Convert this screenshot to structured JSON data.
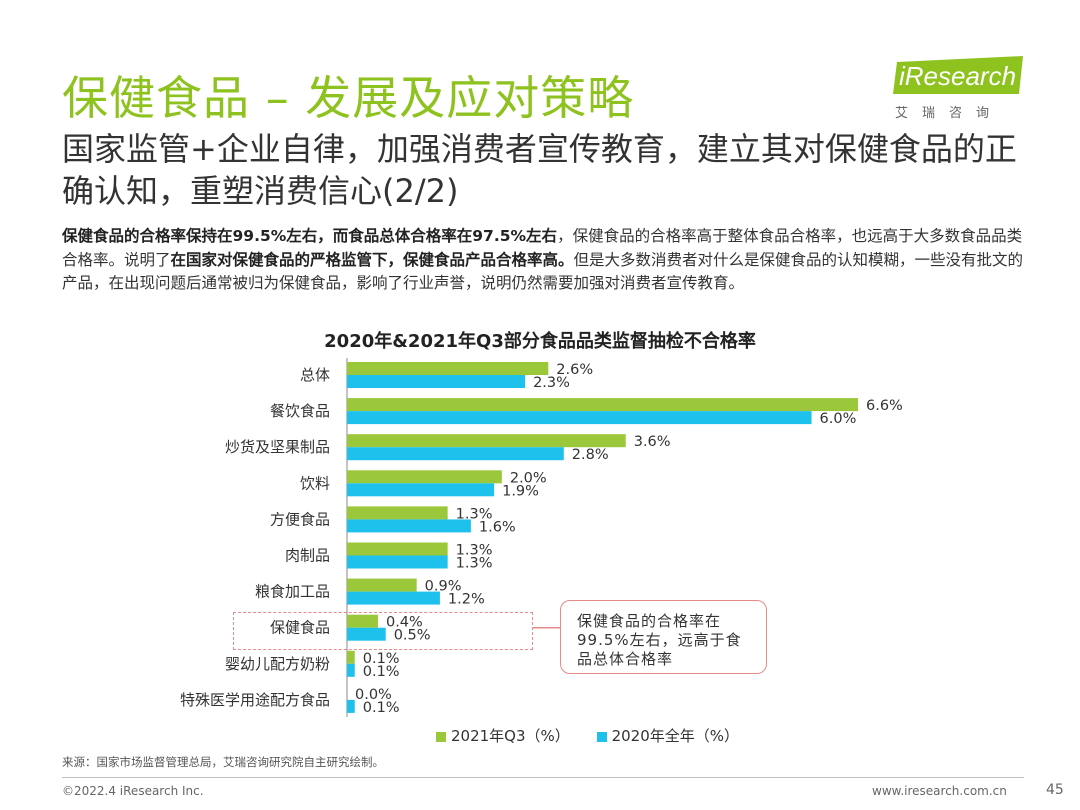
{
  "header": {
    "title": "保健食品 – 发展及应对策略",
    "subtitle": "国家监管+企业自律，加强消费者宣传教育，建立其对保健食品的正确认知，重塑消费信心(2/2)"
  },
  "logo": {
    "text": "iResearch",
    "sub": "艾瑞咨询",
    "color": "#8DC21F"
  },
  "description": {
    "part1_bold": "保健食品的合格率保持在99.5%左右，而食品总体合格率在97.5%左右",
    "part2": "，保健食品的合格率高于整体食品合格率，也远高于大多数食品品类合格率。说明了",
    "part3_bold": "在国家对保健食品的严格监管下，保健食品产品合格率高。",
    "part4": "但是大多数消费者对什么是保健食品的认知模糊，一些没有批文的产品，在出现问题后通常被归为保健食品，影响了行业声誉，说明仍然需要加强对消费者宣传教育。"
  },
  "chart_data": {
    "type": "bar",
    "orientation": "horizontal",
    "title": "2020年&2021年Q3部分食品品类监督抽检不合格率",
    "categories": [
      "总体",
      "餐饮食品",
      "炒货及坚果制品",
      "饮料",
      "方便食品",
      "肉制品",
      "粮食加工品",
      "保健食品",
      "婴幼儿配方奶粉",
      "特殊医学用途配方食品"
    ],
    "series": [
      {
        "name": "2021年Q3（%）",
        "color": "#9BC83A",
        "values": [
          2.6,
          6.6,
          3.6,
          2.0,
          1.3,
          1.3,
          0.9,
          0.4,
          0.1,
          0.0
        ]
      },
      {
        "name": "2020年全年（%）",
        "color": "#1EC1EC",
        "values": [
          2.3,
          6.0,
          2.8,
          1.9,
          1.6,
          1.3,
          1.2,
          0.5,
          0.1,
          0.1
        ]
      }
    ],
    "value_labels": [
      [
        "2.6%",
        "6.6%",
        "3.6%",
        "2.0%",
        "1.3%",
        "1.3%",
        "0.9%",
        "0.4%",
        "0.1%",
        "0.0%"
      ],
      [
        "2.3%",
        "6.0%",
        "2.8%",
        "1.9%",
        "1.6%",
        "1.3%",
        "1.2%",
        "0.5%",
        "0.1%",
        "0.1%"
      ]
    ],
    "xlim": [
      0,
      6.6
    ],
    "grid": false,
    "legend": "bottom",
    "highlight_category": "保健食品"
  },
  "callout": {
    "text": "保健食品的合格率在99.5%左右，远高于食品总体合格率"
  },
  "source": "来源：国家市场监督管理总局，艾瑞咨询研究院自主研究绘制。",
  "footer": {
    "copyright": "©2022.4 iResearch Inc.",
    "website": "www.iresearch.com.cn",
    "page": "45"
  }
}
